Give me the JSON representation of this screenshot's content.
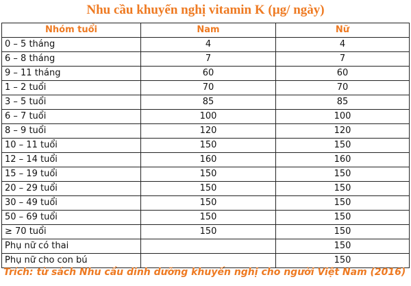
{
  "title": "Nhu cầu khuyến nghị vitamin K (µg/ ngày)",
  "headers": [
    "Nhóm tuổi",
    "Nam",
    "Nữ"
  ],
  "rows": [
    [
      "0 – 5 tháng",
      "4",
      "4"
    ],
    [
      "6 – 8 tháng",
      "7",
      "7"
    ],
    [
      "9 – 11 tháng",
      "60",
      "60"
    ],
    [
      "1 – 2 tuổi",
      "70",
      "70"
    ],
    [
      "3 – 5 tuổi",
      "85",
      "85"
    ],
    [
      "6 – 7 tuổi",
      "100",
      "100"
    ],
    [
      "8 – 9 tuổi",
      "120",
      "120"
    ],
    [
      "10 – 11 tuổi",
      "150",
      "150"
    ],
    [
      "12 – 14 tuổi",
      "160",
      "160"
    ],
    [
      "15 – 19 tuổi",
      "150",
      "150"
    ],
    [
      "20 – 29 tuổi",
      "150",
      "150"
    ],
    [
      "30 – 49 tuổi",
      "150",
      "150"
    ],
    [
      "50 – 69 tuổi",
      "150",
      "150"
    ],
    [
      "≥ 70 tuổi",
      "150",
      "150"
    ],
    [
      "Phụ nữ có thai",
      "",
      "150"
    ],
    [
      "Phụ nữ cho con bú",
      "",
      "150"
    ]
  ],
  "footer": "Trích: từ sách Nhu cầu dinh dưỡng khuyến nghị cho người Việt Nam (2016)",
  "colors": {
    "accent": "#ee7a22",
    "text": "#111111",
    "border": "#222222"
  }
}
